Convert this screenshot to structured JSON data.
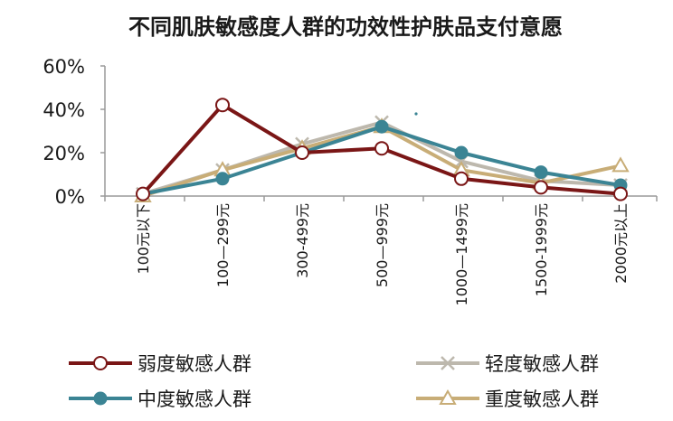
{
  "chart_data": {
    "type": "line",
    "title": "不同肌肤敏感度人群的功效性护肤品支付意愿",
    "categories": [
      "100元以下",
      "100—299元",
      "300-499元",
      "500—999元",
      "1000—1499元",
      "1500-1999元",
      "2000元以上"
    ],
    "y_tick_labels": [
      "0%",
      "20%",
      "40%",
      "60%"
    ],
    "ylim": [
      0,
      60
    ],
    "y_unit": "%",
    "grid": false,
    "legend_position": "bottom",
    "series": [
      {
        "name": "弱度敏感人群",
        "color": "#7a1616",
        "marker": "open-circle",
        "values": [
          1,
          42,
          20,
          22,
          8,
          4,
          1
        ]
      },
      {
        "name": "轻度敏感人群",
        "color": "#bdb8ad",
        "marker": "x",
        "values": [
          1,
          12,
          24,
          34,
          16,
          7,
          5
        ]
      },
      {
        "name": "中度敏感人群",
        "color": "#3b8494",
        "marker": "filled-circle",
        "values": [
          1,
          8,
          20,
          32,
          20,
          11,
          5
        ]
      },
      {
        "name": "重度敏感人群",
        "color": "#c8ad77",
        "marker": "open-triangle",
        "values": [
          0,
          12,
          22,
          32,
          12,
          6,
          14
        ]
      }
    ]
  }
}
